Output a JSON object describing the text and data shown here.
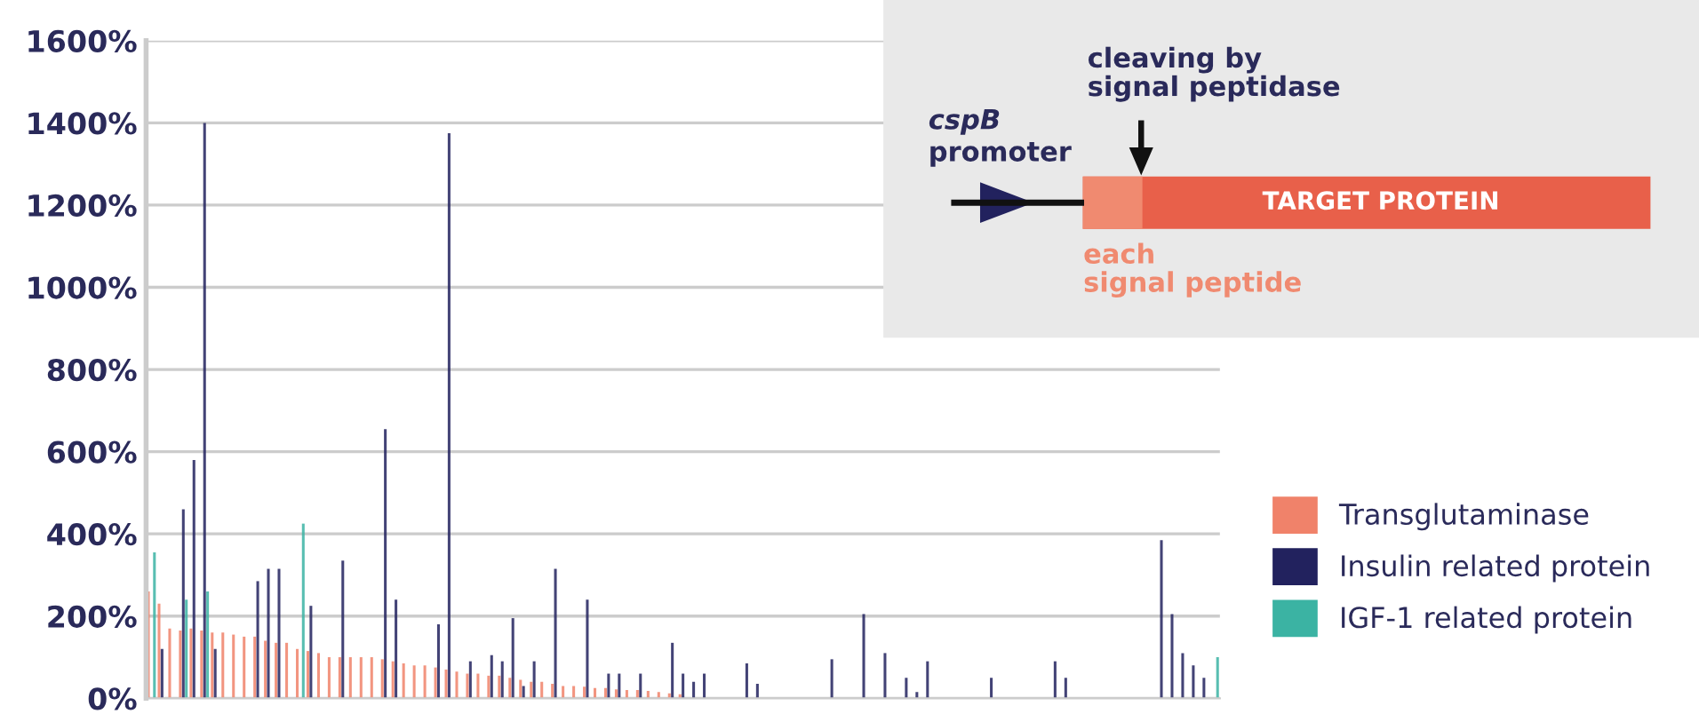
{
  "chart_data": {
    "type": "bar",
    "categories": [
      null,
      null,
      null,
      null,
      null,
      null,
      null,
      null,
      null,
      null,
      null,
      null,
      null,
      null,
      null,
      null,
      null,
      null,
      null,
      null,
      null,
      null,
      null,
      null,
      null,
      null,
      null,
      null,
      null,
      null,
      null,
      null,
      null,
      null,
      null,
      null,
      null,
      null,
      null,
      null,
      null,
      null,
      null,
      null,
      null,
      null,
      null,
      null,
      null,
      null,
      null,
      null,
      null,
      null,
      null,
      null,
      null,
      null,
      null,
      null,
      null,
      null,
      null,
      null,
      null,
      null,
      null,
      null,
      null,
      null,
      null,
      null,
      null,
      null,
      null,
      null,
      null,
      null,
      null,
      null,
      null,
      null,
      null,
      null,
      null,
      null,
      null,
      null,
      null,
      null,
      null,
      null,
      null,
      null,
      null,
      null,
      null,
      null,
      null,
      null,
      null
    ],
    "series": [
      {
        "name": "Transglutaminase",
        "color": "#f0826a",
        "values": [
          260,
          230,
          170,
          165,
          170,
          165,
          160,
          160,
          155,
          150,
          150,
          140,
          135,
          135,
          120,
          115,
          110,
          100,
          100,
          100,
          100,
          100,
          95,
          90,
          85,
          80,
          80,
          75,
          70,
          65,
          60,
          60,
          55,
          55,
          50,
          45,
          40,
          40,
          35,
          30,
          30,
          28,
          25,
          25,
          22,
          20,
          20,
          18,
          15,
          12,
          10,
          null,
          null,
          null,
          null,
          null,
          null,
          null,
          null,
          null,
          null,
          null,
          null,
          null,
          null,
          null,
          null,
          null,
          null,
          null,
          null,
          null,
          null,
          null,
          null,
          null,
          null,
          null,
          null,
          null,
          null,
          null,
          null,
          null,
          null,
          null,
          null,
          null,
          null,
          null,
          null,
          null,
          null,
          null,
          null,
          null,
          null,
          null,
          null,
          null,
          null
        ]
      },
      {
        "name": "Insulin related protein",
        "color": "#22225e",
        "values": [
          null,
          120,
          null,
          460,
          580,
          1400,
          120,
          null,
          null,
          null,
          285,
          315,
          315,
          null,
          null,
          225,
          null,
          null,
          335,
          null,
          null,
          null,
          655,
          240,
          null,
          null,
          null,
          180,
          1375,
          null,
          90,
          null,
          105,
          90,
          195,
          30,
          90,
          null,
          315,
          null,
          null,
          240,
          null,
          60,
          60,
          null,
          60,
          null,
          null,
          135,
          60,
          40,
          60,
          null,
          null,
          null,
          85,
          35,
          null,
          null,
          null,
          null,
          null,
          null,
          95,
          null,
          null,
          205,
          null,
          110,
          null,
          50,
          15,
          90,
          null,
          null,
          null,
          null,
          null,
          50,
          null,
          null,
          null,
          null,
          null,
          90,
          50,
          null,
          null,
          null,
          null,
          null,
          null,
          null,
          null,
          385,
          205,
          110,
          80,
          50,
          null
        ]
      },
      {
        "name": "IGF-1 related protein",
        "color": "#3bb3a3",
        "values": [
          355,
          null,
          null,
          240,
          null,
          260,
          null,
          null,
          null,
          null,
          null,
          null,
          null,
          null,
          425,
          null,
          null,
          null,
          null,
          null,
          null,
          null,
          null,
          null,
          null,
          null,
          null,
          null,
          null,
          null,
          null,
          null,
          null,
          null,
          null,
          null,
          null,
          null,
          null,
          null,
          null,
          null,
          null,
          null,
          null,
          null,
          null,
          null,
          null,
          null,
          null,
          null,
          null,
          null,
          null,
          null,
          null,
          null,
          null,
          null,
          null,
          null,
          null,
          null,
          null,
          null,
          null,
          null,
          null,
          null,
          null,
          null,
          null,
          null,
          null,
          null,
          null,
          null,
          null,
          null,
          null,
          null,
          null,
          null,
          null,
          null,
          null,
          null,
          null,
          null,
          null,
          null,
          null,
          null,
          null,
          null,
          null,
          null,
          null,
          null,
          100
        ]
      }
    ],
    "ylim": [
      0,
      1600
    ],
    "yticks": [
      {
        "value": 0,
        "label": "0%"
      },
      {
        "value": 200,
        "label": "200%"
      },
      {
        "value": 400,
        "label": "400%"
      },
      {
        "value": 600,
        "label": "600%"
      },
      {
        "value": 800,
        "label": "800%"
      },
      {
        "value": 1000,
        "label": "1000%"
      },
      {
        "value": 1200,
        "label": "1200%"
      },
      {
        "value": 1400,
        "label": "1400%"
      },
      {
        "value": 1600,
        "label": "1600%"
      }
    ],
    "grid": "y",
    "legend": "right",
    "annotations": [
      "cspB",
      "promoter",
      "cleaving by\nsignal peptidase",
      "TARGET PROTEIN",
      "each\nsignal peptide"
    ]
  }
}
